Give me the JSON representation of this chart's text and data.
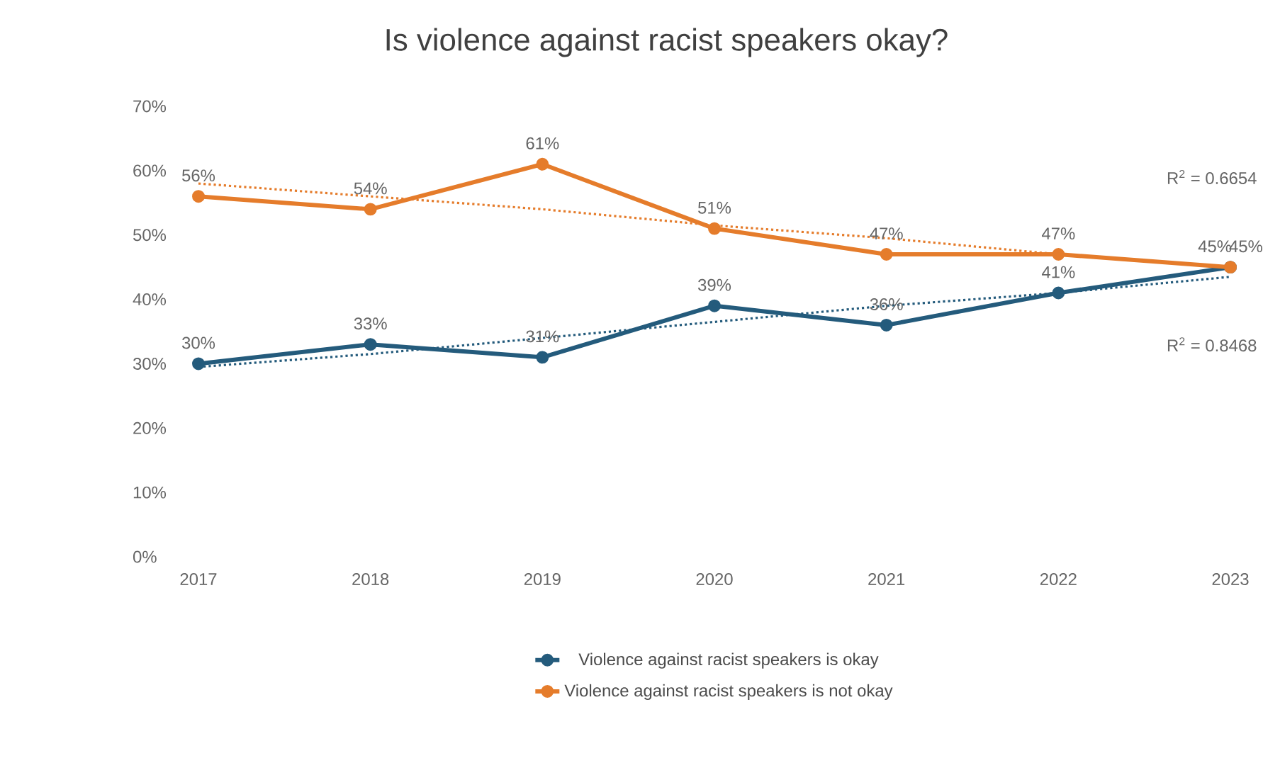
{
  "chart_data": {
    "type": "line",
    "title": "Is violence against racist speakers okay?",
    "x": [
      2017,
      2018,
      2019,
      2020,
      2021,
      2022,
      2023
    ],
    "xlim": [
      2017,
      2023
    ],
    "xticks": [
      2017,
      2018,
      2019,
      2020,
      2021,
      2022,
      2023
    ],
    "ylim": [
      0,
      70
    ],
    "yticks": [
      {
        "value": 0,
        "label": "0%"
      },
      {
        "value": 10,
        "label": "10%"
      },
      {
        "value": 20,
        "label": "20%"
      },
      {
        "value": 30,
        "label": "30%"
      },
      {
        "value": 40,
        "label": "40%"
      },
      {
        "value": 50,
        "label": "50%"
      },
      {
        "value": 60,
        "label": "60%"
      },
      {
        "value": 70,
        "label": "70%"
      }
    ],
    "series": [
      {
        "name": "Violence against racist speakers is okay",
        "color": "#245b7c",
        "marker": "circle",
        "values": [
          30,
          33,
          31,
          39,
          36,
          41,
          45
        ],
        "value_labels": [
          "30%",
          "33%",
          "31%",
          "39%",
          "36%",
          "41%",
          "45%"
        ]
      },
      {
        "name": "Violence against racist speakers is not okay",
        "color": "#e57c2b",
        "marker": "circle",
        "values": [
          56,
          54,
          61,
          51,
          47,
          47,
          45
        ],
        "value_labels": [
          "56%",
          "54%",
          "61%",
          "51%",
          "47%",
          "47%",
          "45%"
        ]
      },
      {
        "type": "line",
        "line_style": "dotted",
        "color": "#245b7c",
        "values": [
          29.5,
          31.5,
          34,
          36.5,
          39,
          41,
          43.5
        ]
      },
      {
        "type": "line",
        "line_style": "dotted",
        "color": "#e57c2b",
        "values": [
          58,
          56,
          54,
          51.5,
          49.5,
          47,
          45
        ]
      }
    ],
    "annotations": [
      "R$^{2}$ = 0.6654",
      "R$^{2}$ = 0.8468"
    ],
    "grid": false,
    "legend": "bottom",
    "line_style": "solid"
  }
}
